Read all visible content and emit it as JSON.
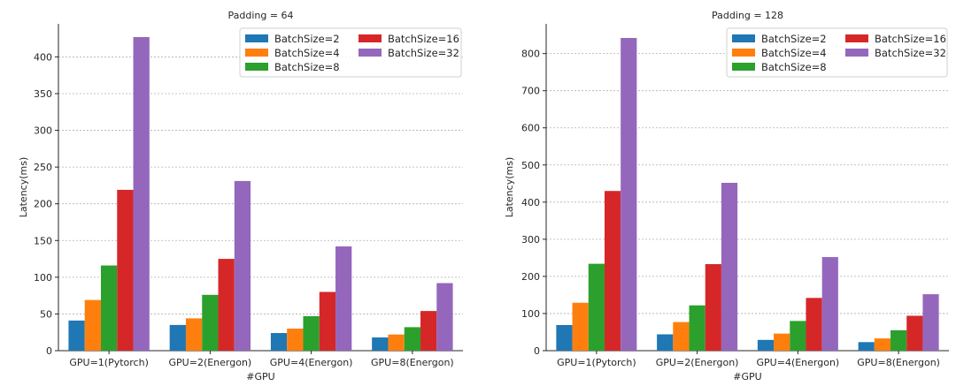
{
  "chart_data": [
    {
      "type": "bar",
      "title": "Padding = 64",
      "xlabel": "#GPU",
      "ylabel": "Latency(ms)",
      "ylim": [
        0,
        445
      ],
      "yticks": [
        0,
        50,
        100,
        150,
        200,
        250,
        300,
        350,
        400
      ],
      "grid": "y-dashed",
      "legend_position": "top-right",
      "categories": [
        "GPU=1(Pytorch)",
        "GPU=2(Energon)",
        "GPU=4(Energon)",
        "GPU=8(Energon)"
      ],
      "series": [
        {
          "name": "BatchSize=2",
          "color": "#1f77b4",
          "values": [
            41,
            35,
            24,
            18
          ]
        },
        {
          "name": "BatchSize=4",
          "color": "#ff7f0e",
          "values": [
            69,
            44,
            30,
            22
          ]
        },
        {
          "name": "BatchSize=8",
          "color": "#2ca02c",
          "values": [
            116,
            76,
            47,
            32
          ]
        },
        {
          "name": "BatchSize=16",
          "color": "#d62728",
          "values": [
            219,
            125,
            80,
            54
          ]
        },
        {
          "name": "BatchSize=32",
          "color": "#9467bd",
          "values": [
            427,
            231,
            142,
            92
          ]
        }
      ]
    },
    {
      "type": "bar",
      "title": "Padding = 128",
      "xlabel": "#GPU",
      "ylabel": "Latency(ms)",
      "ylim": [
        0,
        880
      ],
      "yticks": [
        0,
        100,
        200,
        300,
        400,
        500,
        600,
        700,
        800
      ],
      "grid": "y-dashed",
      "legend_position": "top-right",
      "categories": [
        "GPU=1(Pytorch)",
        "GPU=2(Energon)",
        "GPU=4(Energon)",
        "GPU=8(Energon)"
      ],
      "series": [
        {
          "name": "BatchSize=2",
          "color": "#1f77b4",
          "values": [
            69,
            44,
            29,
            23
          ]
        },
        {
          "name": "BatchSize=4",
          "color": "#ff7f0e",
          "values": [
            129,
            77,
            46,
            33
          ]
        },
        {
          "name": "BatchSize=8",
          "color": "#2ca02c",
          "values": [
            234,
            122,
            80,
            55
          ]
        },
        {
          "name": "BatchSize=16",
          "color": "#d62728",
          "values": [
            430,
            233,
            142,
            94
          ]
        },
        {
          "name": "BatchSize=32",
          "color": "#9467bd",
          "values": [
            842,
            452,
            252,
            152
          ]
        }
      ]
    }
  ]
}
